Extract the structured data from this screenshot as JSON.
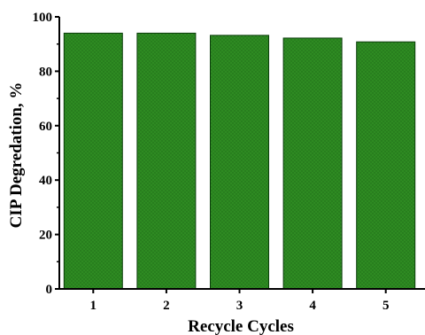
{
  "chart_data": {
    "type": "bar",
    "categories": [
      "1",
      "2",
      "3",
      "4",
      "5"
    ],
    "values": [
      94,
      94,
      93.2,
      92.2,
      90.8
    ],
    "xlabel": "Recycle Cycles",
    "ylabel": "CIP Degredation, %",
    "ylim": [
      0,
      100
    ],
    "yticks": [
      "0",
      "20",
      "40",
      "60",
      "80",
      "100"
    ],
    "grid": false,
    "bar_color": "#2e8b22",
    "bar_edge_color": "#0b3d0b"
  }
}
